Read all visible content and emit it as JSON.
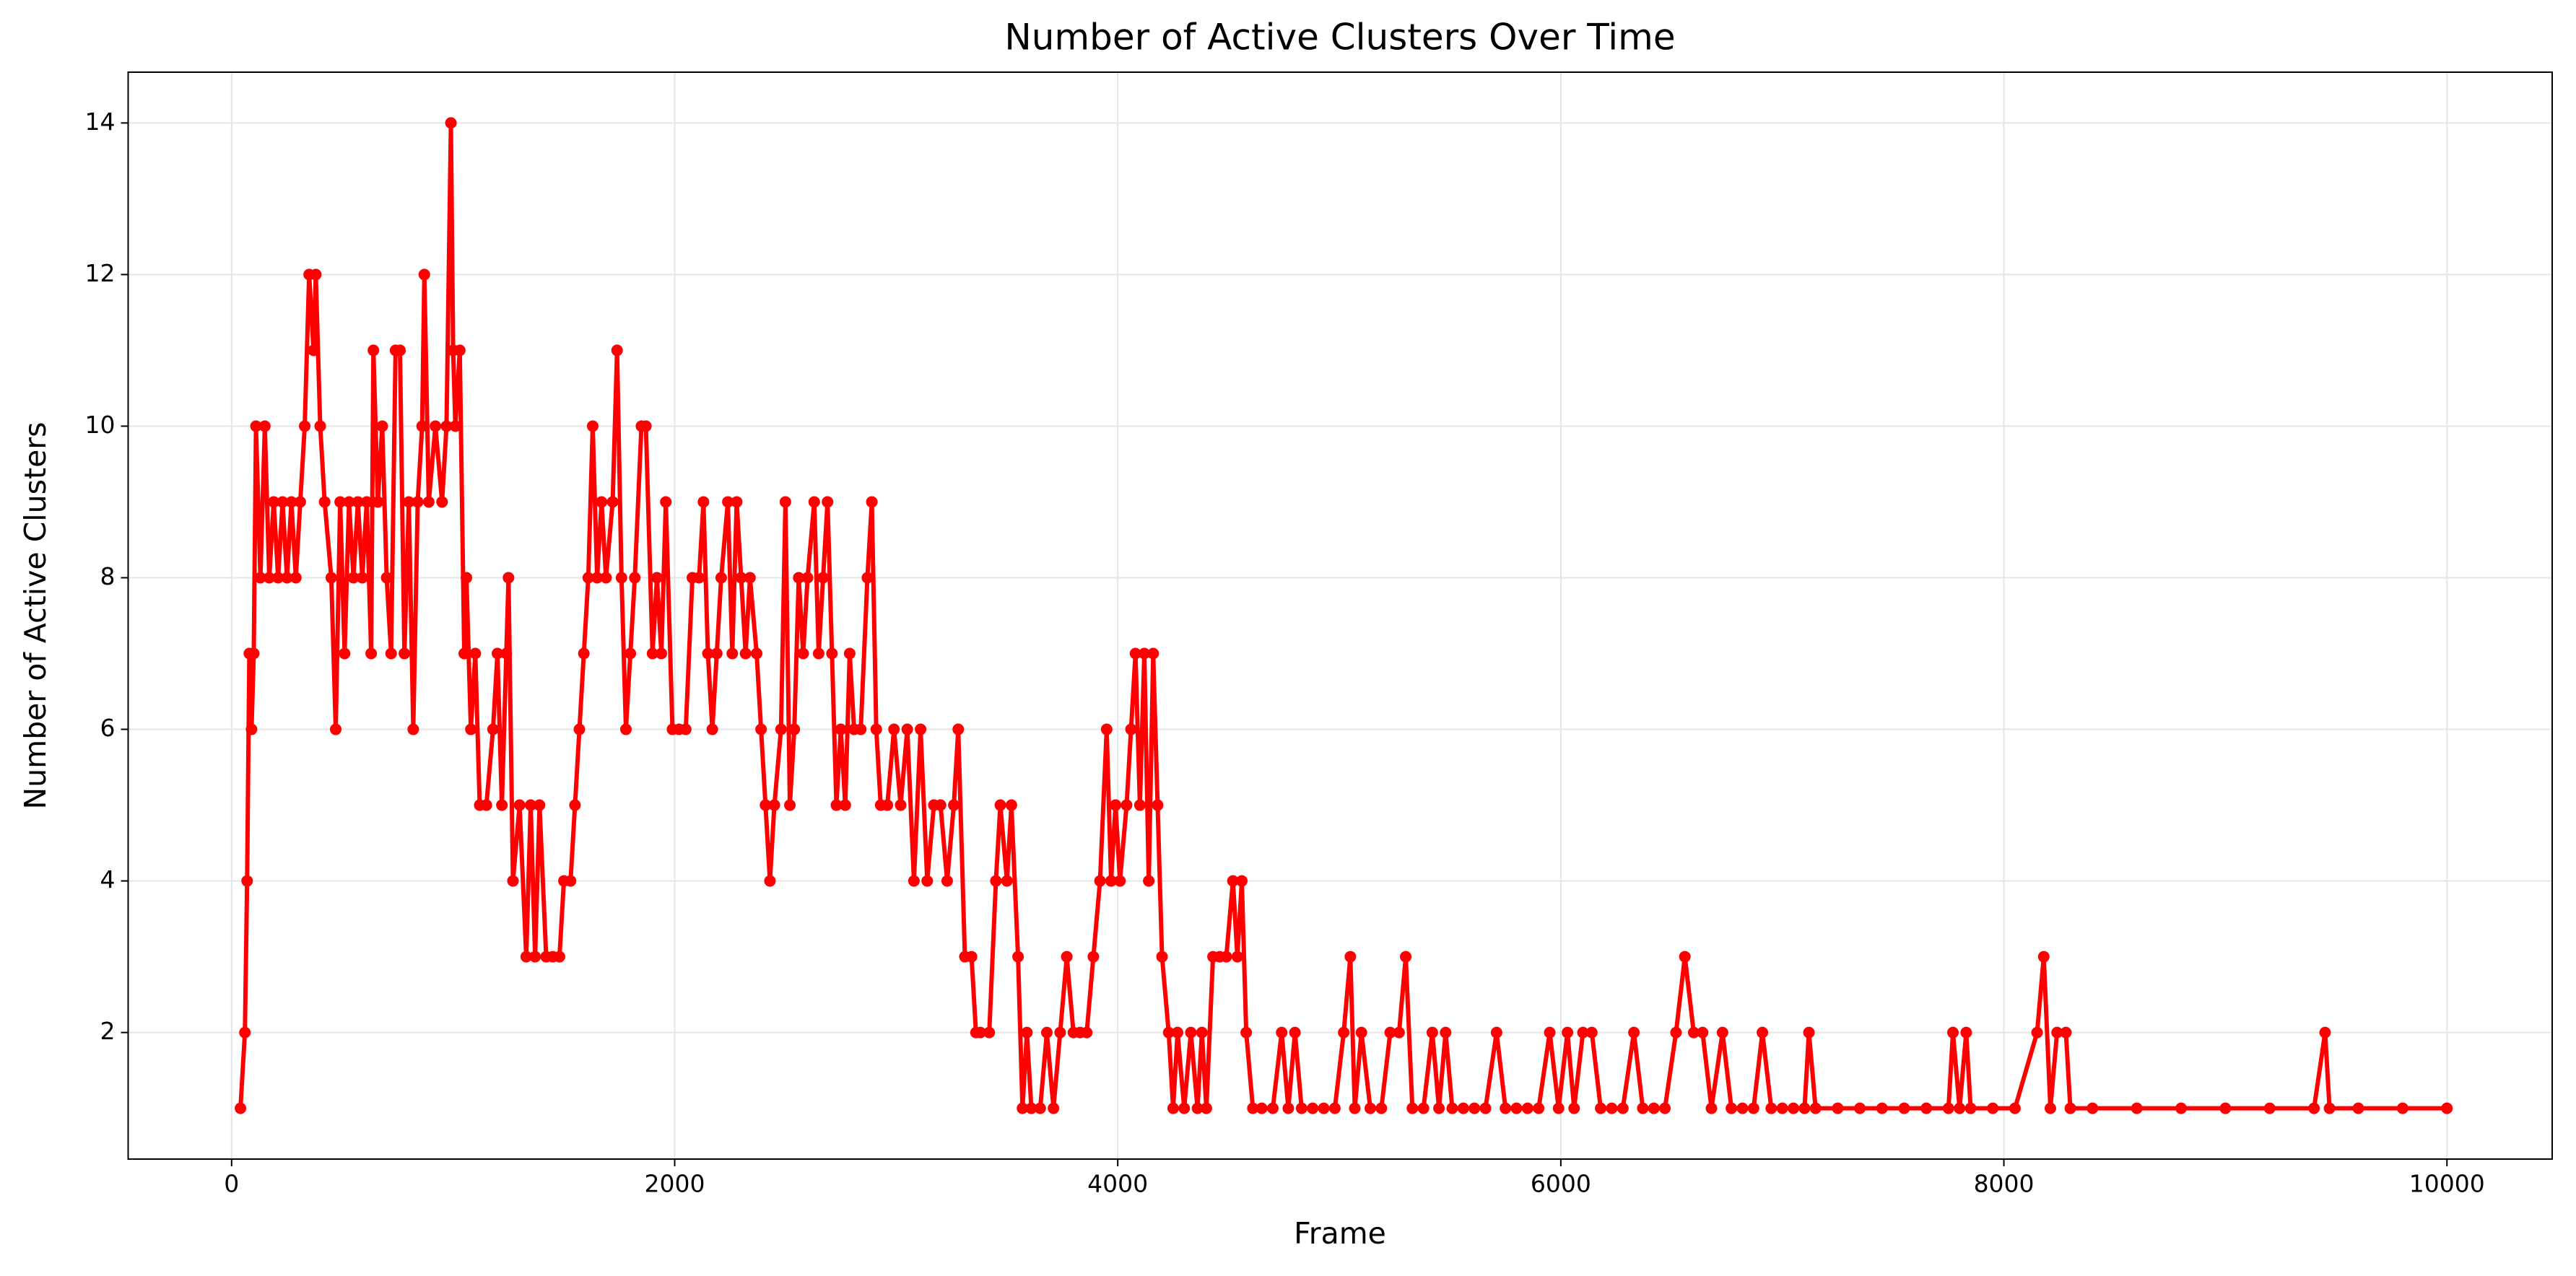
{
  "chart_data": {
    "type": "line",
    "title": "Number of Active Clusters Over Time",
    "xlabel": "Frame",
    "ylabel": "Number of Active Clusters",
    "color": "red",
    "grid": true,
    "xlim": [
      -467,
      10475
    ],
    "ylim": [
      0.33,
      14.67
    ],
    "xticks": [
      0,
      2000,
      4000,
      6000,
      8000,
      10000
    ],
    "yticks": [
      2,
      4,
      6,
      8,
      10,
      12,
      14
    ],
    "x": [
      40,
      60,
      70,
      80,
      90,
      100,
      110,
      130,
      150,
      170,
      190,
      210,
      230,
      250,
      270,
      290,
      310,
      330,
      350,
      370,
      380,
      400,
      420,
      450,
      470,
      490,
      510,
      530,
      550,
      570,
      590,
      610,
      630,
      640,
      660,
      680,
      700,
      720,
      740,
      760,
      780,
      800,
      820,
      840,
      860,
      870,
      890,
      920,
      950,
      970,
      990,
      1000,
      1010,
      1030,
      1050,
      1060,
      1080,
      1100,
      1120,
      1150,
      1180,
      1200,
      1220,
      1240,
      1250,
      1270,
      1300,
      1330,
      1350,
      1370,
      1390,
      1420,
      1450,
      1480,
      1500,
      1530,
      1550,
      1570,
      1590,
      1610,
      1630,
      1650,
      1670,
      1690,
      1720,
      1740,
      1760,
      1780,
      1800,
      1820,
      1850,
      1870,
      1900,
      1920,
      1940,
      1960,
      1990,
      2020,
      2050,
      2080,
      2110,
      2130,
      2150,
      2170,
      2190,
      2210,
      2240,
      2260,
      2280,
      2300,
      2320,
      2340,
      2370,
      2390,
      2410,
      2430,
      2450,
      2480,
      2500,
      2520,
      2540,
      2560,
      2580,
      2600,
      2630,
      2650,
      2670,
      2690,
      2710,
      2730,
      2750,
      2770,
      2790,
      2810,
      2840,
      2870,
      2890,
      2910,
      2930,
      2960,
      2990,
      3020,
      3050,
      3080,
      3110,
      3140,
      3170,
      3200,
      3230,
      3260,
      3280,
      3310,
      3340,
      3360,
      3380,
      3420,
      3450,
      3470,
      3500,
      3520,
      3550,
      3570,
      3590,
      3610,
      3650,
      3680,
      3710,
      3740,
      3770,
      3800,
      3830,
      3860,
      3890,
      3920,
      3950,
      3970,
      3990,
      4010,
      4040,
      4060,
      4080,
      4100,
      4120,
      4140,
      4160,
      4180,
      4200,
      4230,
      4250,
      4270,
      4300,
      4330,
      4360,
      4380,
      4400,
      4430,
      4460,
      4490,
      4520,
      4540,
      4560,
      4580,
      4610,
      4650,
      4700,
      4740,
      4770,
      4800,
      4830,
      4880,
      4930,
      4980,
      5020,
      5050,
      5070,
      5100,
      5140,
      5190,
      5230,
      5270,
      5300,
      5330,
      5380,
      5420,
      5450,
      5480,
      5510,
      5560,
      5610,
      5660,
      5710,
      5750,
      5800,
      5850,
      5900,
      5950,
      5990,
      6030,
      6060,
      6100,
      6140,
      6180,
      6230,
      6280,
      6330,
      6370,
      6420,
      6470,
      6520,
      6560,
      6600,
      6640,
      6680,
      6730,
      6770,
      6820,
      6870,
      6910,
      6950,
      7000,
      7050,
      7100,
      7120,
      7150,
      7250,
      7350,
      7450,
      7550,
      7650,
      7750,
      7770,
      7800,
      7830,
      7850,
      7950,
      8050,
      8150,
      8180,
      8210,
      8240,
      8280,
      8300,
      8400,
      8600,
      8800,
      9000,
      9200,
      9400,
      9450,
      9470,
      9600,
      9800,
      10000
    ],
    "values": [
      1,
      2,
      4,
      7,
      6,
      7,
      10,
      8,
      10,
      8,
      9,
      8,
      9,
      8,
      9,
      8,
      9,
      10,
      12,
      11,
      12,
      10,
      9,
      8,
      6,
      9,
      7,
      9,
      8,
      9,
      8,
      9,
      7,
      11,
      9,
      10,
      8,
      7,
      11,
      11,
      7,
      9,
      6,
      9,
      10,
      12,
      9,
      10,
      9,
      10,
      14,
      11,
      10,
      11,
      7,
      8,
      6,
      7,
      5,
      5,
      6,
      7,
      5,
      7,
      8,
      4,
      5,
      3,
      5,
      3,
      5,
      3,
      3,
      3,
      4,
      4,
      5,
      6,
      7,
      8,
      10,
      8,
      9,
      8,
      9,
      11,
      8,
      6,
      7,
      8,
      10,
      10,
      7,
      8,
      7,
      9,
      6,
      6,
      6,
      8,
      8,
      9,
      7,
      6,
      7,
      8,
      9,
      7,
      9,
      8,
      7,
      8,
      7,
      6,
      5,
      4,
      5,
      6,
      9,
      5,
      6,
      8,
      7,
      8,
      9,
      7,
      8,
      9,
      7,
      5,
      6,
      5,
      7,
      6,
      6,
      8,
      9,
      6,
      5,
      5,
      6,
      5,
      6,
      4,
      6,
      4,
      5,
      5,
      4,
      5,
      6,
      3,
      3,
      2,
      2,
      2,
      4,
      5,
      4,
      5,
      3,
      1,
      2,
      1,
      1,
      2,
      1,
      2,
      3,
      2,
      2,
      2,
      3,
      4,
      6,
      4,
      5,
      4,
      5,
      6,
      7,
      5,
      7,
      4,
      7,
      5,
      3,
      2,
      1,
      2,
      1,
      2,
      1,
      2,
      1,
      3,
      3,
      3,
      4,
      3,
      4,
      2,
      1,
      1,
      1,
      2,
      1,
      2,
      1,
      1,
      1,
      1,
      2,
      3,
      1,
      2,
      1,
      1,
      2,
      2,
      3,
      1,
      1,
      2,
      1,
      2,
      1,
      1,
      1,
      1,
      2,
      1,
      1,
      1,
      1,
      2,
      1,
      2,
      1,
      2,
      2,
      1,
      1,
      1,
      2,
      1,
      1,
      1,
      2,
      3,
      2,
      2,
      1,
      2,
      1,
      1,
      1,
      2,
      1,
      1,
      1,
      1,
      2,
      1,
      1,
      1,
      1,
      1,
      1,
      1,
      2,
      1,
      2,
      1,
      1,
      1,
      2,
      3,
      1,
      2,
      2,
      1,
      1,
      1,
      1,
      1,
      1,
      1,
      2,
      1,
      1,
      1,
      1
    ]
  }
}
